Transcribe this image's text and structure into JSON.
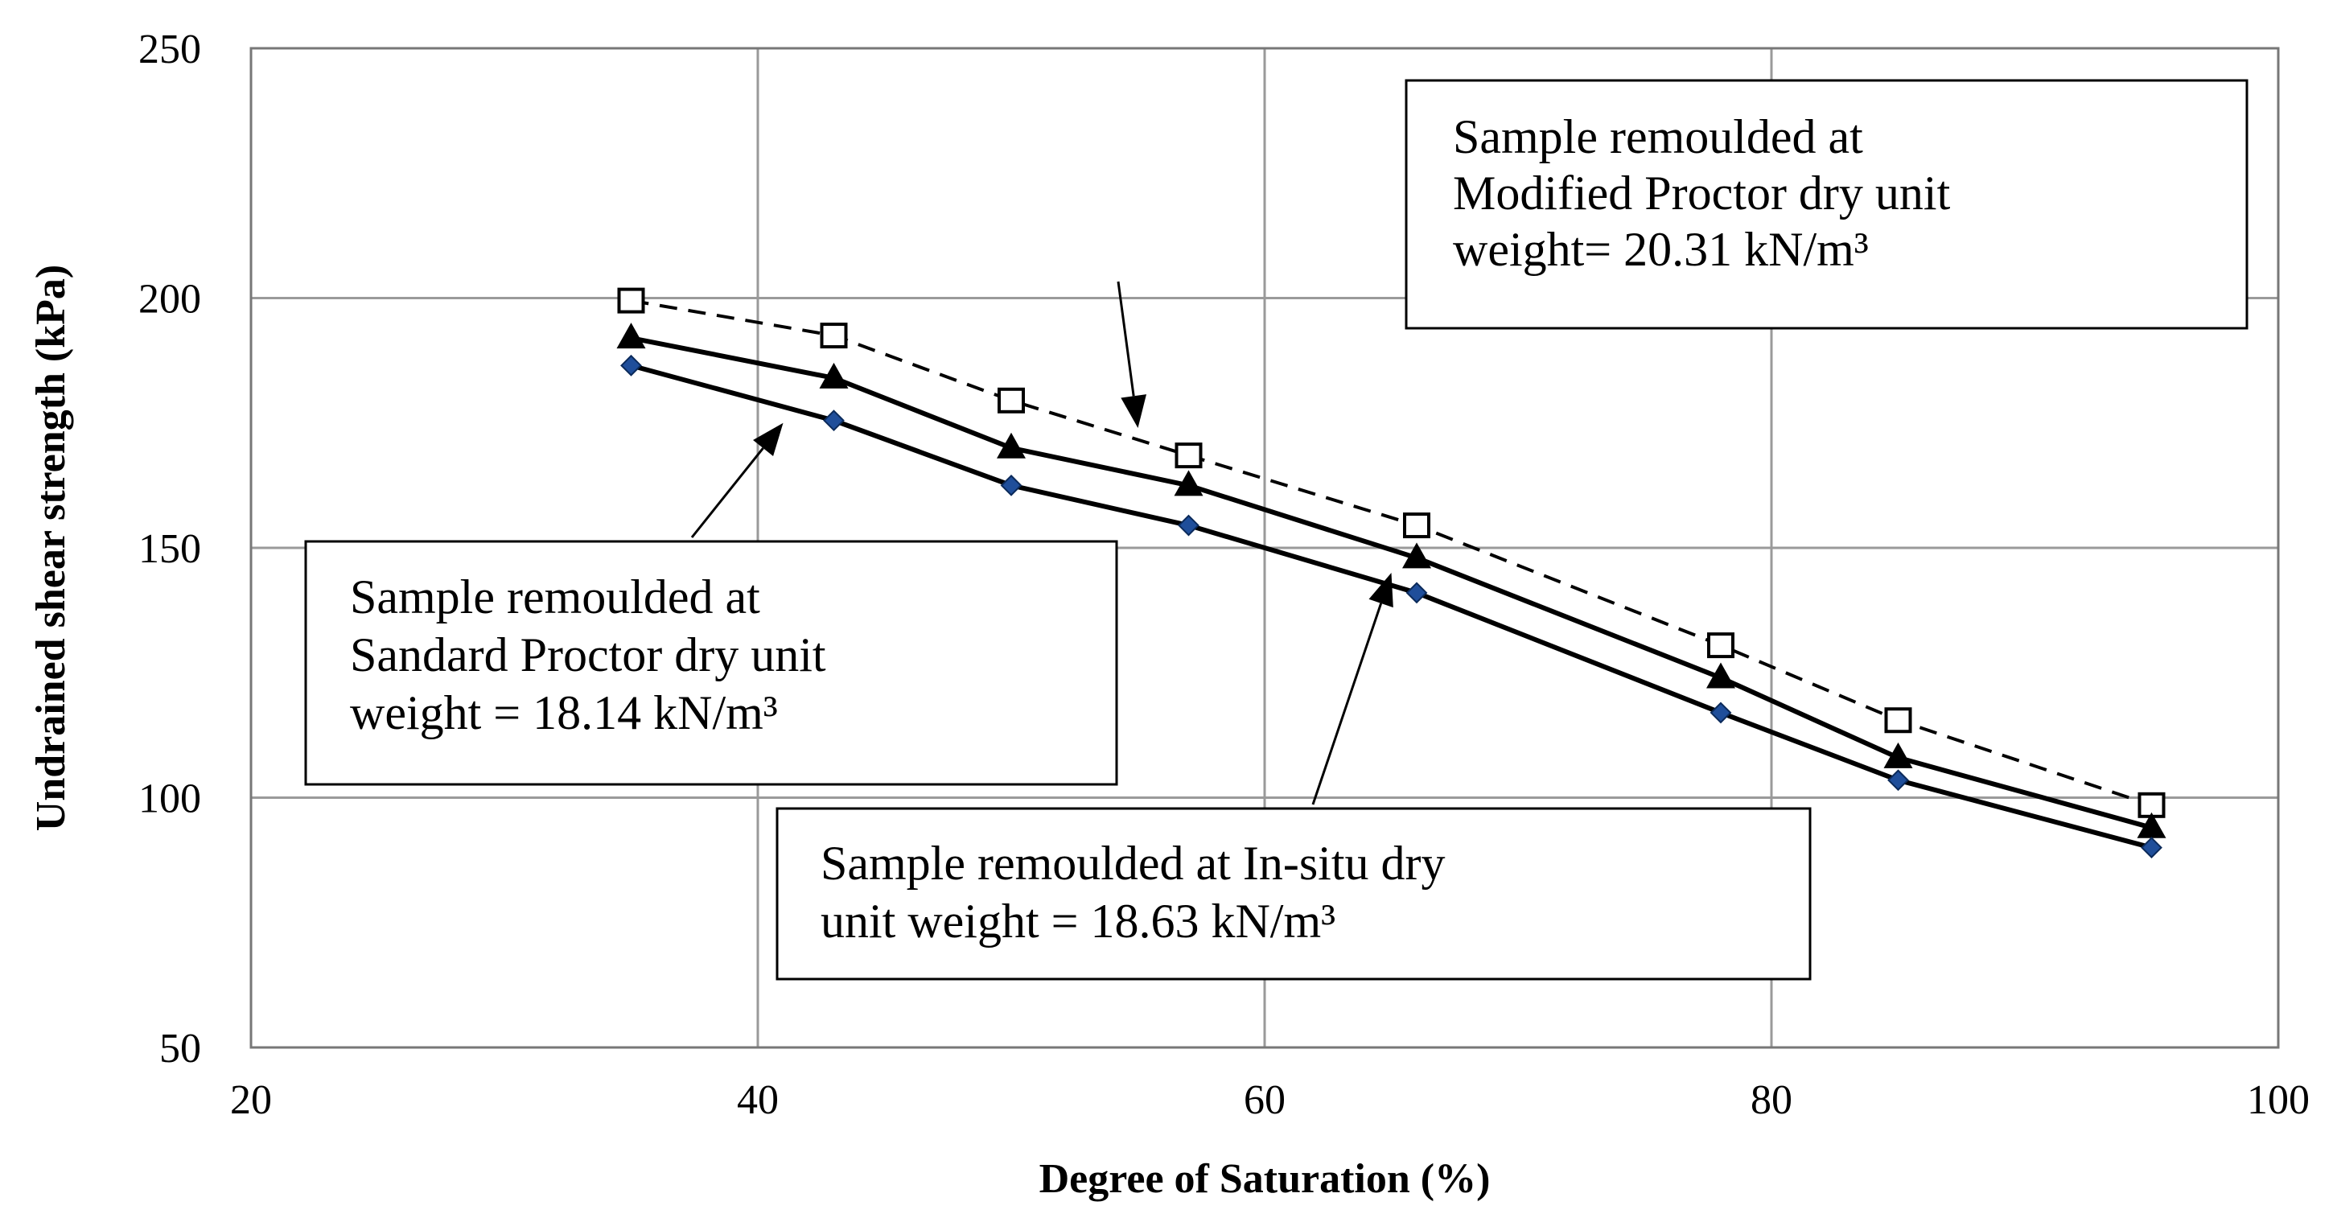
{
  "chart_data": {
    "type": "line",
    "title": "",
    "xlabel": "Degree of Saturation (%)",
    "ylabel": "Undrained shear strength (kPa)",
    "xlim": [
      20,
      100
    ],
    "ylim": [
      50,
      250
    ],
    "xticks": [
      20,
      40,
      60,
      80,
      100
    ],
    "yticks": [
      50,
      100,
      150,
      200,
      250
    ],
    "grid": true,
    "x": [
      35,
      43,
      50,
      57,
      66,
      78,
      85,
      95
    ],
    "series": [
      {
        "name": "Modified Proctor",
        "marker": "open-square",
        "line": "dashed",
        "color": "#000000",
        "values": [
          199.5,
          192.5,
          179.5,
          168.5,
          154.5,
          130.5,
          115.5,
          98.5
        ]
      },
      {
        "name": "In-situ",
        "marker": "filled-triangle",
        "line": "solid",
        "color": "#000000",
        "values": [
          192,
          184,
          170,
          162.5,
          148,
          124,
          108,
          94
        ]
      },
      {
        "name": "Standard Proctor",
        "marker": "filled-diamond",
        "line": "solid",
        "color": "#1f4e9a",
        "values": [
          186.5,
          175.5,
          162.5,
          154.5,
          141,
          117,
          103.5,
          90
        ]
      }
    ],
    "annotations": [
      {
        "id": "modified",
        "lines": [
          "Sample remoulded at",
          "Modified  Proctor dry unit",
          "weight= 20.31 kN/m³"
        ],
        "points_to": [
          55,
          174
        ]
      },
      {
        "id": "standard",
        "lines": [
          "Sample remoulded at",
          "Sandard Proctor dry unit",
          "weight = 18.14 kN/m³"
        ],
        "points_to": [
          41,
          175
        ]
      },
      {
        "id": "insitu",
        "lines": [
          "Sample remoulded at In-situ dry",
          "unit weight = 18.63 kN/m³"
        ],
        "points_to": [
          65,
          145
        ]
      }
    ]
  }
}
